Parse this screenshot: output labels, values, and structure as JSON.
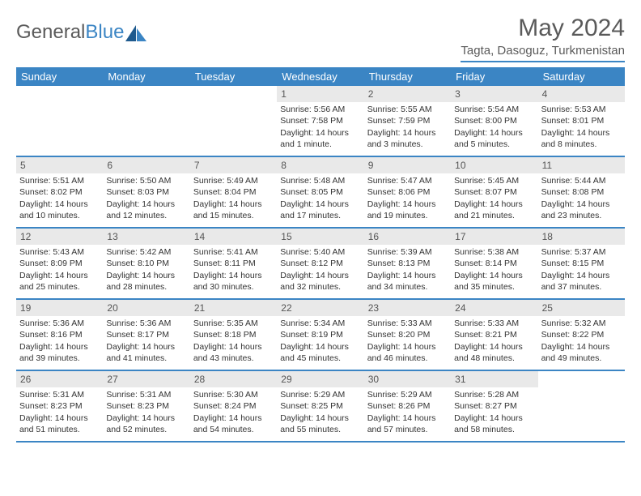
{
  "logo": {
    "part1": "General",
    "part2": "Blue"
  },
  "title": "May 2024",
  "location": "Tagta, Dasoguz, Turkmenistan",
  "colors": {
    "accent": "#3b85c4",
    "dayHeaderBg": "#e9e9e9",
    "text": "#333333",
    "background": "#ffffff"
  },
  "daysOfWeek": [
    "Sunday",
    "Monday",
    "Tuesday",
    "Wednesday",
    "Thursday",
    "Friday",
    "Saturday"
  ],
  "weeks": [
    [
      {
        "day": "",
        "sunrise": "",
        "sunset": "",
        "daylight": ""
      },
      {
        "day": "",
        "sunrise": "",
        "sunset": "",
        "daylight": ""
      },
      {
        "day": "",
        "sunrise": "",
        "sunset": "",
        "daylight": ""
      },
      {
        "day": "1",
        "sunrise": "Sunrise: 5:56 AM",
        "sunset": "Sunset: 7:58 PM",
        "daylight": "Daylight: 14 hours and 1 minute."
      },
      {
        "day": "2",
        "sunrise": "Sunrise: 5:55 AM",
        "sunset": "Sunset: 7:59 PM",
        "daylight": "Daylight: 14 hours and 3 minutes."
      },
      {
        "day": "3",
        "sunrise": "Sunrise: 5:54 AM",
        "sunset": "Sunset: 8:00 PM",
        "daylight": "Daylight: 14 hours and 5 minutes."
      },
      {
        "day": "4",
        "sunrise": "Sunrise: 5:53 AM",
        "sunset": "Sunset: 8:01 PM",
        "daylight": "Daylight: 14 hours and 8 minutes."
      }
    ],
    [
      {
        "day": "5",
        "sunrise": "Sunrise: 5:51 AM",
        "sunset": "Sunset: 8:02 PM",
        "daylight": "Daylight: 14 hours and 10 minutes."
      },
      {
        "day": "6",
        "sunrise": "Sunrise: 5:50 AM",
        "sunset": "Sunset: 8:03 PM",
        "daylight": "Daylight: 14 hours and 12 minutes."
      },
      {
        "day": "7",
        "sunrise": "Sunrise: 5:49 AM",
        "sunset": "Sunset: 8:04 PM",
        "daylight": "Daylight: 14 hours and 15 minutes."
      },
      {
        "day": "8",
        "sunrise": "Sunrise: 5:48 AM",
        "sunset": "Sunset: 8:05 PM",
        "daylight": "Daylight: 14 hours and 17 minutes."
      },
      {
        "day": "9",
        "sunrise": "Sunrise: 5:47 AM",
        "sunset": "Sunset: 8:06 PM",
        "daylight": "Daylight: 14 hours and 19 minutes."
      },
      {
        "day": "10",
        "sunrise": "Sunrise: 5:45 AM",
        "sunset": "Sunset: 8:07 PM",
        "daylight": "Daylight: 14 hours and 21 minutes."
      },
      {
        "day": "11",
        "sunrise": "Sunrise: 5:44 AM",
        "sunset": "Sunset: 8:08 PM",
        "daylight": "Daylight: 14 hours and 23 minutes."
      }
    ],
    [
      {
        "day": "12",
        "sunrise": "Sunrise: 5:43 AM",
        "sunset": "Sunset: 8:09 PM",
        "daylight": "Daylight: 14 hours and 25 minutes."
      },
      {
        "day": "13",
        "sunrise": "Sunrise: 5:42 AM",
        "sunset": "Sunset: 8:10 PM",
        "daylight": "Daylight: 14 hours and 28 minutes."
      },
      {
        "day": "14",
        "sunrise": "Sunrise: 5:41 AM",
        "sunset": "Sunset: 8:11 PM",
        "daylight": "Daylight: 14 hours and 30 minutes."
      },
      {
        "day": "15",
        "sunrise": "Sunrise: 5:40 AM",
        "sunset": "Sunset: 8:12 PM",
        "daylight": "Daylight: 14 hours and 32 minutes."
      },
      {
        "day": "16",
        "sunrise": "Sunrise: 5:39 AM",
        "sunset": "Sunset: 8:13 PM",
        "daylight": "Daylight: 14 hours and 34 minutes."
      },
      {
        "day": "17",
        "sunrise": "Sunrise: 5:38 AM",
        "sunset": "Sunset: 8:14 PM",
        "daylight": "Daylight: 14 hours and 35 minutes."
      },
      {
        "day": "18",
        "sunrise": "Sunrise: 5:37 AM",
        "sunset": "Sunset: 8:15 PM",
        "daylight": "Daylight: 14 hours and 37 minutes."
      }
    ],
    [
      {
        "day": "19",
        "sunrise": "Sunrise: 5:36 AM",
        "sunset": "Sunset: 8:16 PM",
        "daylight": "Daylight: 14 hours and 39 minutes."
      },
      {
        "day": "20",
        "sunrise": "Sunrise: 5:36 AM",
        "sunset": "Sunset: 8:17 PM",
        "daylight": "Daylight: 14 hours and 41 minutes."
      },
      {
        "day": "21",
        "sunrise": "Sunrise: 5:35 AM",
        "sunset": "Sunset: 8:18 PM",
        "daylight": "Daylight: 14 hours and 43 minutes."
      },
      {
        "day": "22",
        "sunrise": "Sunrise: 5:34 AM",
        "sunset": "Sunset: 8:19 PM",
        "daylight": "Daylight: 14 hours and 45 minutes."
      },
      {
        "day": "23",
        "sunrise": "Sunrise: 5:33 AM",
        "sunset": "Sunset: 8:20 PM",
        "daylight": "Daylight: 14 hours and 46 minutes."
      },
      {
        "day": "24",
        "sunrise": "Sunrise: 5:33 AM",
        "sunset": "Sunset: 8:21 PM",
        "daylight": "Daylight: 14 hours and 48 minutes."
      },
      {
        "day": "25",
        "sunrise": "Sunrise: 5:32 AM",
        "sunset": "Sunset: 8:22 PM",
        "daylight": "Daylight: 14 hours and 49 minutes."
      }
    ],
    [
      {
        "day": "26",
        "sunrise": "Sunrise: 5:31 AM",
        "sunset": "Sunset: 8:23 PM",
        "daylight": "Daylight: 14 hours and 51 minutes."
      },
      {
        "day": "27",
        "sunrise": "Sunrise: 5:31 AM",
        "sunset": "Sunset: 8:23 PM",
        "daylight": "Daylight: 14 hours and 52 minutes."
      },
      {
        "day": "28",
        "sunrise": "Sunrise: 5:30 AM",
        "sunset": "Sunset: 8:24 PM",
        "daylight": "Daylight: 14 hours and 54 minutes."
      },
      {
        "day": "29",
        "sunrise": "Sunrise: 5:29 AM",
        "sunset": "Sunset: 8:25 PM",
        "daylight": "Daylight: 14 hours and 55 minutes."
      },
      {
        "day": "30",
        "sunrise": "Sunrise: 5:29 AM",
        "sunset": "Sunset: 8:26 PM",
        "daylight": "Daylight: 14 hours and 57 minutes."
      },
      {
        "day": "31",
        "sunrise": "Sunrise: 5:28 AM",
        "sunset": "Sunset: 8:27 PM",
        "daylight": "Daylight: 14 hours and 58 minutes."
      },
      {
        "day": "",
        "sunrise": "",
        "sunset": "",
        "daylight": ""
      }
    ]
  ]
}
